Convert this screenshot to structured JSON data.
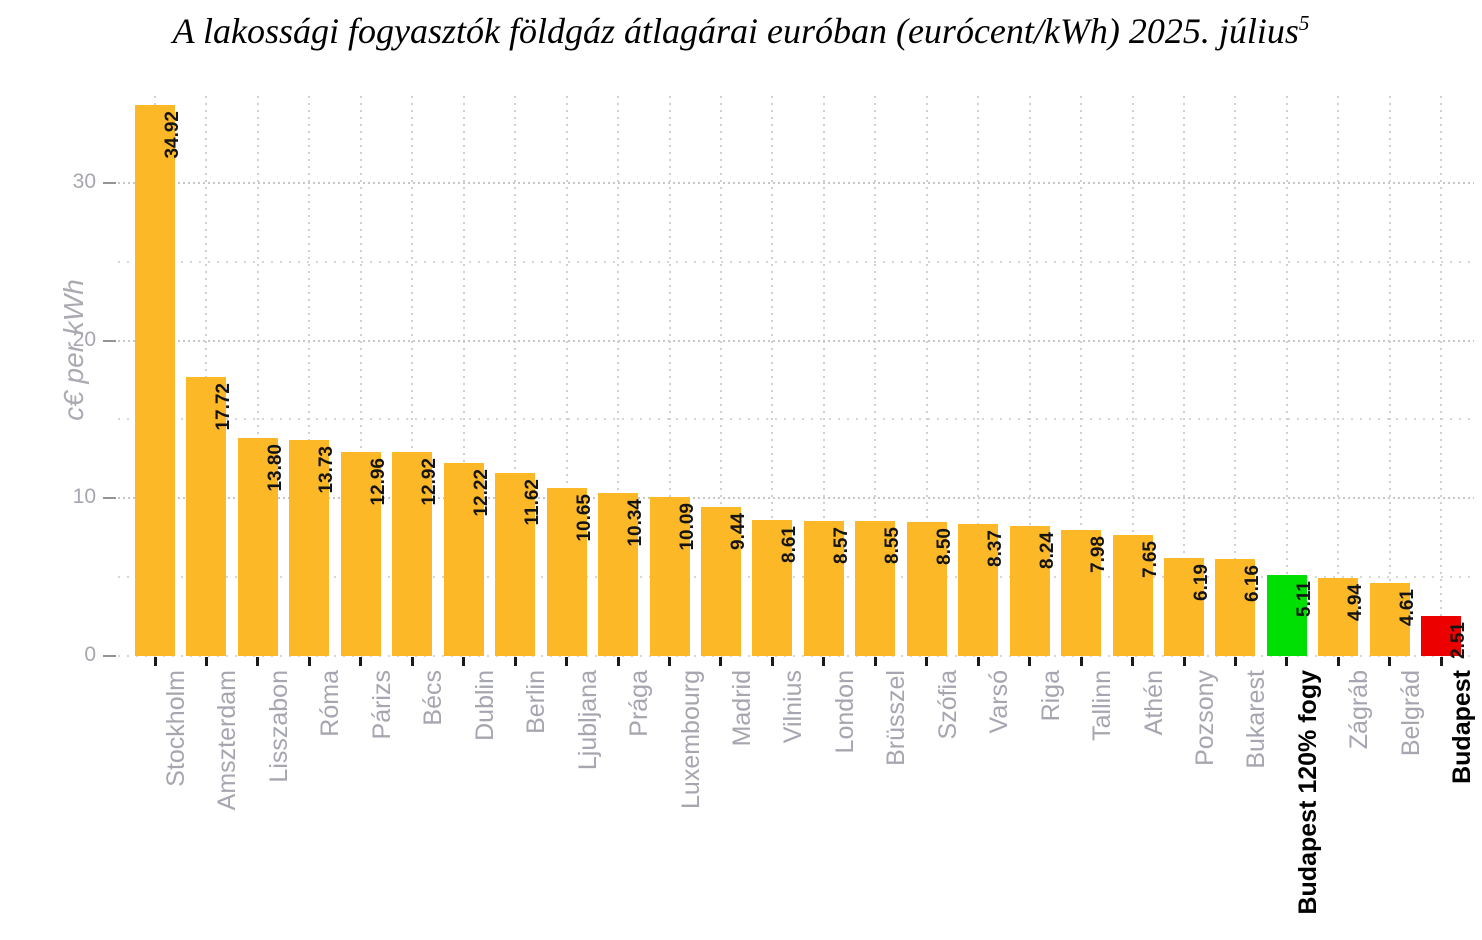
{
  "title": {
    "text": "A lakossági fogyasztók földgáz átlagárai euróban (eurócent/kWh) 2025. július",
    "superscript": "5"
  },
  "chart_data": {
    "type": "bar",
    "title": "A lakossági fogyasztók földgáz átlagárai euróban (eurócent/kWh) 2025. július",
    "footnote_marker": "5",
    "ylabel": "c€ per kWh",
    "xlabel": "",
    "ylim": [
      0,
      35
    ],
    "yticks": [
      0,
      10,
      20,
      30
    ],
    "grid_minor_levels": [
      0,
      5,
      15,
      25
    ],
    "grid_major_levels": [
      10,
      20,
      30
    ],
    "grid": "dotted",
    "legend": "none",
    "bars": [
      {
        "category": "Stockholm",
        "value": 34.92,
        "label": "34.92",
        "color": "orange"
      },
      {
        "category": "Amszterdam",
        "value": 17.72,
        "label": "17.72",
        "color": "orange"
      },
      {
        "category": "Lisszabon",
        "value": 13.8,
        "label": "13.80",
        "color": "orange"
      },
      {
        "category": "Róma",
        "value": 13.73,
        "label": "13.73",
        "color": "orange"
      },
      {
        "category": "Párizs",
        "value": 12.96,
        "label": "12.96",
        "color": "orange"
      },
      {
        "category": "Bécs",
        "value": 12.92,
        "label": "12.92",
        "color": "orange"
      },
      {
        "category": "Dublin",
        "value": 12.22,
        "label": "12.22",
        "color": "orange"
      },
      {
        "category": "Berlin",
        "value": 11.62,
        "label": "11.62",
        "color": "orange"
      },
      {
        "category": "Ljubljana",
        "value": 10.65,
        "label": "10.65",
        "color": "orange"
      },
      {
        "category": "Prága",
        "value": 10.34,
        "label": "10.34",
        "color": "orange"
      },
      {
        "category": "Luxembourg",
        "value": 10.09,
        "label": "10.09",
        "color": "orange"
      },
      {
        "category": "Madrid",
        "value": 9.44,
        "label": "9.44",
        "color": "orange"
      },
      {
        "category": "Vilnius",
        "value": 8.61,
        "label": "8.61",
        "color": "orange"
      },
      {
        "category": "London",
        "value": 8.57,
        "label": "8.57",
        "color": "orange"
      },
      {
        "category": "Brüsszel",
        "value": 8.55,
        "label": "8.55",
        "color": "orange"
      },
      {
        "category": "Szófia",
        "value": 8.5,
        "label": "8.50",
        "color": "orange"
      },
      {
        "category": "Varsó",
        "value": 8.37,
        "label": "8.37",
        "color": "orange"
      },
      {
        "category": "Riga",
        "value": 8.24,
        "label": "8.24",
        "color": "orange"
      },
      {
        "category": "Tallinn",
        "value": 7.98,
        "label": "7.98",
        "color": "orange"
      },
      {
        "category": "Athén",
        "value": 7.65,
        "label": "7.65",
        "color": "orange"
      },
      {
        "category": "Pozsony",
        "value": 6.19,
        "label": "6.19",
        "color": "orange"
      },
      {
        "category": "Bukarest",
        "value": 6.16,
        "label": "6.16",
        "color": "orange"
      },
      {
        "category": "Budapest 120% fogy",
        "value": 5.11,
        "label": "5.11",
        "color": "green"
      },
      {
        "category": "Zágráb",
        "value": 4.94,
        "label": "4.94",
        "color": "orange"
      },
      {
        "category": "Belgrád",
        "value": 4.61,
        "label": "4.61",
        "color": "orange"
      },
      {
        "category": "Budapest",
        "value": 2.51,
        "label": "2.51",
        "color": "red"
      }
    ],
    "palette": {
      "orange": "#FCB827",
      "green": "#00DF03",
      "red": "#EC0000",
      "grid_major": "#c7c7c7",
      "grid_minor": "#d7d7d7",
      "grid_vertical": "#d0d0d0",
      "axis_text": "#a6a6b0",
      "tick": "#949494",
      "value_label": "#141414",
      "emphasis_label": "#000000"
    }
  }
}
